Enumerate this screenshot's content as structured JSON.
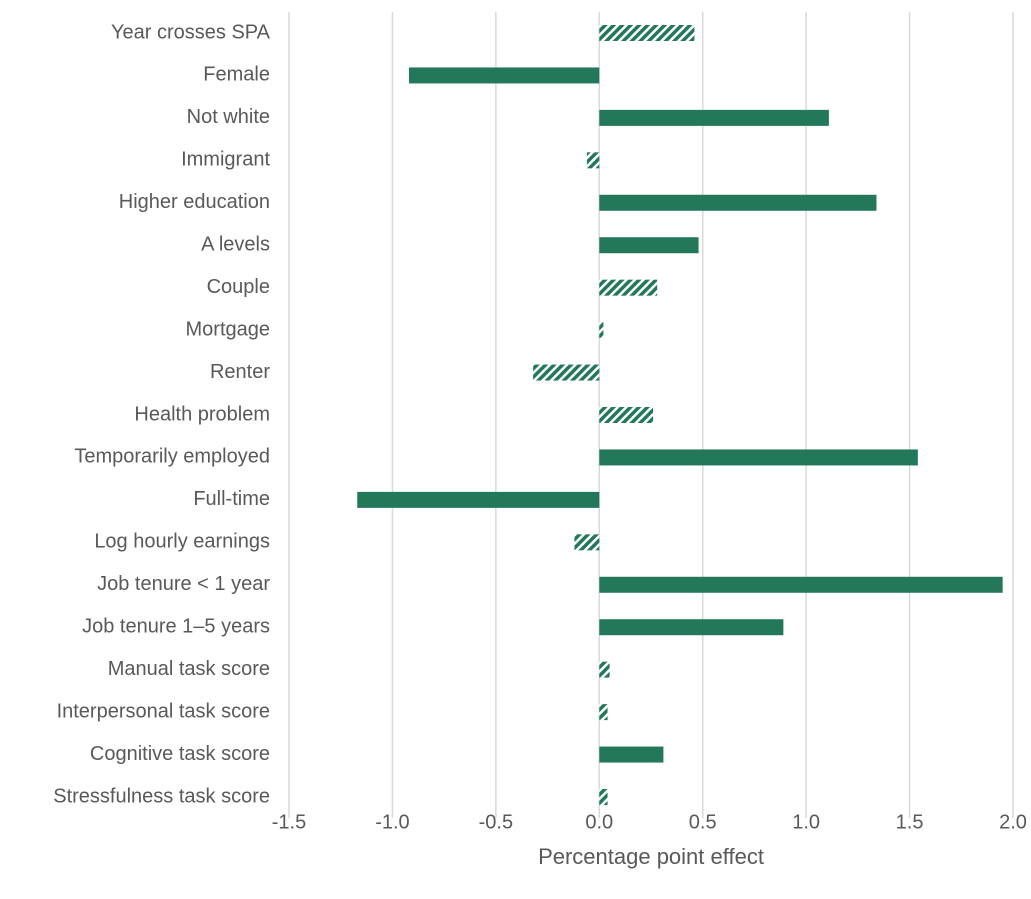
{
  "chart_data": {
    "type": "hbar",
    "x_label": "Percentage point effect",
    "categories": [
      "Year crosses SPA",
      "Female",
      "Not white",
      "Immigrant",
      "Higher education",
      "A levels",
      "Couple",
      "Mortgage",
      "Renter",
      "Health problem",
      "Temporarily employed",
      "Full-time",
      "Log hourly earnings",
      "Job tenure < 1 year",
      "Job tenure 1–5 years",
      "Manual task score",
      "Interpersonal task score",
      "Cognitive task score",
      "Stressfulness task score"
    ],
    "values": [
      0.46,
      -0.92,
      1.11,
      -0.06,
      1.34,
      0.48,
      0.28,
      0.02,
      -0.32,
      0.26,
      1.54,
      -1.17,
      -0.12,
      1.95,
      0.89,
      0.05,
      0.04,
      0.31,
      0.04
    ],
    "styles": [
      "hatched",
      "solid",
      "solid",
      "hatched",
      "solid",
      "solid",
      "hatched",
      "hatched",
      "hatched",
      "hatched",
      "solid",
      "solid",
      "hatched",
      "solid",
      "solid",
      "hatched",
      "hatched",
      "solid",
      "hatched"
    ],
    "color": "#23785a",
    "xlim": [
      -1.5,
      2.0
    ],
    "xticks": [
      -1.5,
      {
        "value": -1,
        "label": "-1.0"
      },
      -0.5,
      {
        "value": 0,
        "label": "0.0"
      },
      0.5,
      {
        "value": 1,
        "label": "1.0"
      },
      1.5,
      {
        "value": 2,
        "label": "2.0"
      }
    ],
    "grid": true
  }
}
